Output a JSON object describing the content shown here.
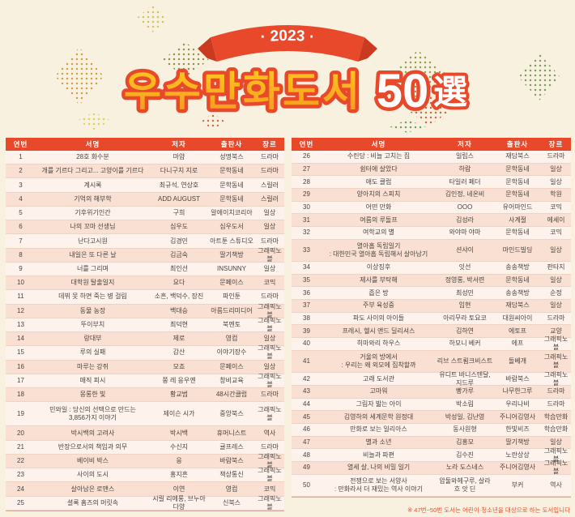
{
  "header": {
    "year_badge": "· 2023 ·",
    "title_main": "우수만화도서",
    "title_number": "50",
    "title_hanja": "選"
  },
  "table": {
    "columns": [
      "연번",
      "서명",
      "저자",
      "출판사",
      "장르"
    ],
    "left_rows": [
      {
        "no": "1",
        "title": "28호 화수분",
        "author": "마얌",
        "publisher": "성명북스",
        "genre": "드라마"
      },
      {
        "no": "2",
        "title": "개를 기르다 그리고... 고양이를 기르다",
        "author": "다니구치 지로",
        "publisher": "문학동네",
        "genre": "드라마"
      },
      {
        "no": "3",
        "title": "계시록",
        "author": "최규석, 연상호",
        "publisher": "문학동네",
        "genre": "스릴러"
      },
      {
        "no": "4",
        "title": "기억의 해부학",
        "author": "ADD AUGUST",
        "publisher": "문학동네",
        "genre": "스릴러"
      },
      {
        "no": "5",
        "title": "기후위기인간",
        "author": "구희",
        "publisher": "알에이치코리아",
        "genre": "일상"
      },
      {
        "no": "6",
        "title": "나의 꼬마 선생님",
        "author": "심우도",
        "publisher": "심우도서",
        "genre": "일상"
      },
      {
        "no": "7",
        "title": "난다고시원",
        "author": "김경민",
        "publisher": "아트툰 스튜디오",
        "genre": "드라마"
      },
      {
        "no": "8",
        "title": "내일은 또 다른 날",
        "author": "김금숙",
        "publisher": "딸기책방",
        "genre": "그래픽노블"
      },
      {
        "no": "9",
        "title": "너를 그리며",
        "author": "최인선",
        "publisher": "INSUNNY",
        "genre": "일상"
      },
      {
        "no": "10",
        "title": "대학원 탈출일지",
        "author": "요다",
        "publisher": "문페이스",
        "genre": "코믹"
      },
      {
        "no": "11",
        "title": "데뷔 못 하면 죽는 병 걸림",
        "author": "소흔, 백덕수, 장진",
        "publisher": "파인툰",
        "genre": "드라마"
      },
      {
        "no": "12",
        "title": "동물 농장",
        "author": "백대승",
        "publisher": "아름드리미디어",
        "genre": "그래픽노블"
      },
      {
        "no": "13",
        "title": "뚜이부치",
        "author": "최덕현",
        "publisher": "북멘토",
        "genre": "그래픽노블"
      },
      {
        "no": "14",
        "title": "랑대부",
        "author": "제로",
        "publisher": "영컴",
        "genre": "일상"
      },
      {
        "no": "15",
        "title": "루의 실패",
        "author": "감산",
        "publisher": "이야기장수",
        "genre": "그래픽노블"
      },
      {
        "no": "16",
        "title": "마루는 강쥐",
        "author": "모죠",
        "publisher": "문페이스",
        "genre": "일상"
      },
      {
        "no": "17",
        "title": "매직 피시",
        "author": "쭝 레 응우옌",
        "publisher": "창비교육",
        "genre": "그래픽노블"
      },
      {
        "no": "18",
        "title": "몽롱한 빛",
        "author": "황교범",
        "publisher": "48시간클럽",
        "genre": "드라마"
      },
      {
        "no": "19",
        "title": "민와일 : 당신의 선택으로 만드는\n3,856가지 이야기",
        "author": "제이슨 시가",
        "publisher": "중앙북스",
        "genre": "그래픽노블",
        "tall": true
      },
      {
        "no": "20",
        "title": "박시백의 고려사",
        "author": "박시백",
        "publisher": "휴머니스트",
        "genre": "역사"
      },
      {
        "no": "21",
        "title": "반장으로서의 책임과 의무",
        "author": "수신지",
        "publisher": "귤프레스",
        "genre": "드라마"
      },
      {
        "no": "22",
        "title": "베이비 박스",
        "author": "응",
        "publisher": "바람북스",
        "genre": "그래픽노블"
      },
      {
        "no": "23",
        "title": "사이의 도시",
        "author": "홍지흔",
        "publisher": "책상통신",
        "genre": "그래픽노블"
      },
      {
        "no": "24",
        "title": "살아남은 로맨스",
        "author": "이연",
        "publisher": "영컴",
        "genre": "코믹"
      },
      {
        "no": "25",
        "title": "셜록 홈즈의 머릿속",
        "author": "시릴 리에롱, 브누아 다양",
        "publisher": "신북스",
        "genre": "그래픽노블"
      }
    ],
    "right_rows": [
      {
        "no": "26",
        "title": "수린당 : 비늘 고치는 집",
        "author": "일립스",
        "publisher": "재담북스",
        "genre": "드라마"
      },
      {
        "no": "27",
        "title": "쉼터에 살았다",
        "author": "하람",
        "publisher": "문학동네",
        "genre": "일상"
      },
      {
        "no": "28",
        "title": "애도 클럽",
        "author": "타일러 페더",
        "publisher": "문학동네",
        "genre": "일상"
      },
      {
        "no": "29",
        "title": "양아치의 스피치",
        "author": "김인정, 네온비",
        "publisher": "문학동네",
        "genre": "학원"
      },
      {
        "no": "30",
        "title": "어떤 만화",
        "author": "OOO",
        "publisher": "유어마인드",
        "genre": "코믹"
      },
      {
        "no": "31",
        "title": "여름의 루돌프",
        "author": "김성라",
        "publisher": "사계절",
        "genre": "에세이"
      },
      {
        "no": "32",
        "title": "여학교의 별",
        "author": "와야마 야마",
        "publisher": "문학동네",
        "genre": "코믹"
      },
      {
        "no": "33",
        "title": "열아홉 독립일기\n: 대한민국 열아홉 독립해서 살아남기",
        "author": "션샤이",
        "publisher": "마인드빌딩",
        "genre": "일상",
        "tall": true
      },
      {
        "no": "34",
        "title": "이상징후",
        "author": "잇선",
        "publisher": "송송책방",
        "genre": "판타지"
      },
      {
        "no": "35",
        "title": "제사를 부탁해",
        "author": "정영롱, 박서련",
        "publisher": "문학동네",
        "genre": "일상"
      },
      {
        "no": "36",
        "title": "좁은 방",
        "author": "최성민",
        "publisher": "송송책방",
        "genre": "순정"
      },
      {
        "no": "37",
        "title": "주부 육성중",
        "author": "임현",
        "publisher": "재담북스",
        "genre": "일상"
      },
      {
        "no": "38",
        "title": "파도 사이의 아이들",
        "author": "아리무라 토요코",
        "publisher": "대원씨아이",
        "genre": "드라마"
      },
      {
        "no": "39",
        "title": "프레시, 헬시 앤드 딜리셔스",
        "author": "김하연",
        "publisher": "에토프",
        "genre": "교양"
      },
      {
        "no": "40",
        "title": "히마와리 하우스",
        "author": "하모니 베커",
        "publisher": "에프",
        "genre": "그래픽노블"
      },
      {
        "no": "41",
        "title": "거울의 방에서\n: 우리는 왜 외모에 집착할까",
        "author": "리브 스트룀크비스트",
        "publisher": "돌베개",
        "genre": "그래픽노블",
        "tall": true
      },
      {
        "no": "42",
        "title": "고래 도서관",
        "author": "유디트 바니스텐달, 지드루",
        "publisher": "바람북스",
        "genre": "그래픽노블"
      },
      {
        "no": "43",
        "title": "고마워",
        "author": "빵가루",
        "publisher": "나무한그루",
        "genre": "드라마"
      },
      {
        "no": "44",
        "title": "그림자 밟는 아이",
        "author": "박소림",
        "publisher": "우리나비",
        "genre": "드라마"
      },
      {
        "no": "45",
        "title": "김영하의 세계문학 원정대",
        "author": "박성일, 김난영",
        "publisher": "주니어김영사",
        "genre": "학습만화"
      },
      {
        "no": "46",
        "title": "만화로 보는 일리아스",
        "author": "동사원형",
        "publisher": "한빛비즈",
        "genre": "학습만화"
      },
      {
        "no": "47",
        "title": "별과 소년",
        "author": "김홍모",
        "publisher": "딸기책방",
        "genre": "일상"
      },
      {
        "no": "48",
        "title": "비늘과 파편",
        "author": "김수진",
        "publisher": "노란상상",
        "genre": "그래픽노블"
      },
      {
        "no": "49",
        "title": "열세 살, 나의 비밀 일기",
        "author": "노라 도스네스",
        "publisher": "주니어김영사",
        "genre": "그래픽노블"
      },
      {
        "no": "50",
        "title": "전쟁으로 보는 서양사\n: 만화라서 더 재밌는 역사 이야기",
        "author": "압둘와헤구루, 살라흐 앗 딘",
        "publisher": "부커",
        "genre": "역사",
        "tall": true
      }
    ]
  },
  "footnote": "※ 47번~50번 도서는 어린이·청소년을 대상으로 하는 도서입니다",
  "colors": {
    "background": "#f8f1df",
    "accent_red": "#e8492b",
    "title_yellow": "#ffb71e",
    "row_light": "#fdf3ec",
    "row_peach": "#f9e0d2"
  }
}
